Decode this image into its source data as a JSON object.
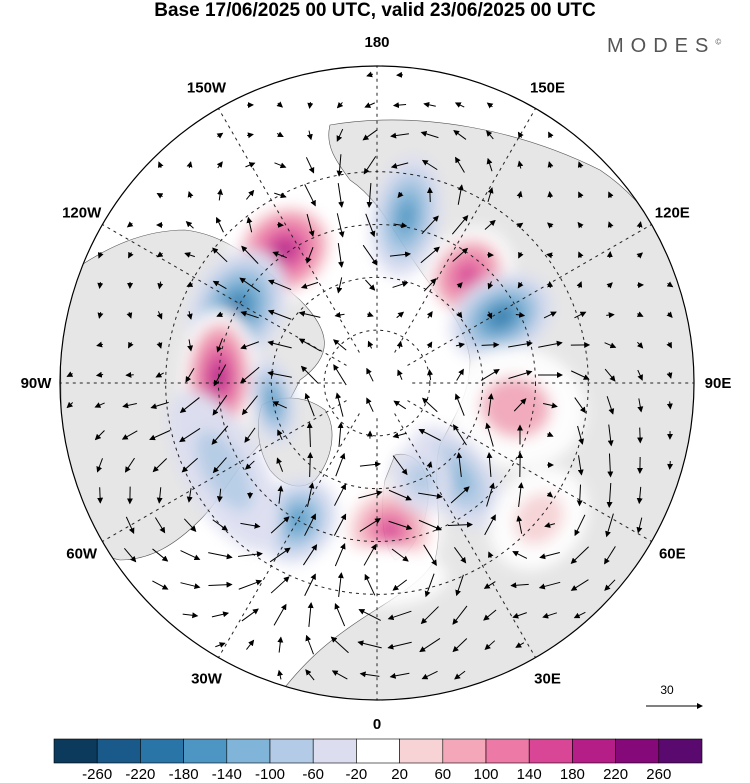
{
  "title": "Base 17/06/2025 00 UTC, valid 23/06/2025 00 UTC",
  "brand": "MODES",
  "brand_mark": "©",
  "longitude_labels": [
    {
      "lon": 180,
      "text": "180"
    },
    {
      "lon": 150,
      "text": "150E"
    },
    {
      "lon": 120,
      "text": "120E"
    },
    {
      "lon": 90,
      "text": "90E"
    },
    {
      "lon": 60,
      "text": "60E"
    },
    {
      "lon": 30,
      "text": "30E"
    },
    {
      "lon": 0,
      "text": "0"
    },
    {
      "lon": -30,
      "text": "30W"
    },
    {
      "lon": -60,
      "text": "60W"
    },
    {
      "lon": -90,
      "text": "90W"
    },
    {
      "lon": -120,
      "text": "120W"
    },
    {
      "lon": -150,
      "text": "150W"
    }
  ],
  "reference_vector": {
    "value": "30"
  },
  "colorbar": {
    "labels": [
      "-260",
      "-220",
      "-180",
      "-140",
      "-100",
      "-60",
      "-20",
      "20",
      "60",
      "100",
      "140",
      "180",
      "220",
      "260"
    ],
    "colors": [
      "#0c3a5c",
      "#1a5a8a",
      "#2a75a8",
      "#4d96c4",
      "#80b4d8",
      "#b3cbe6",
      "#dcdef0",
      "#ffffff",
      "#f8d3d6",
      "#f3a7b9",
      "#ec79a6",
      "#d94696",
      "#b41e86",
      "#86097a",
      "#5a0a6e"
    ]
  },
  "anomalies": [
    {
      "lon": -145,
      "lat": 44,
      "value": 200,
      "rx": 58,
      "ry": 50
    },
    {
      "lon": 170,
      "lat": 42,
      "value": -160,
      "rx": 35,
      "ry": 62
    },
    {
      "lon": 140,
      "lat": 50,
      "value": 160,
      "rx": 42,
      "ry": 50
    },
    {
      "lon": 118,
      "lat": 50,
      "value": -200,
      "rx": 40,
      "ry": 55
    },
    {
      "lon": -118,
      "lat": 45,
      "value": -200,
      "rx": 62,
      "ry": 46
    },
    {
      "lon": -92,
      "lat": 45,
      "value": 200,
      "rx": 68,
      "ry": 38
    },
    {
      "lon": -80,
      "lat": 60,
      "value": -140,
      "rx": 45,
      "ry": 22
    },
    {
      "lon": 80,
      "lat": 50,
      "value": 80,
      "rx": 60,
      "ry": 70
    },
    {
      "lon": 40,
      "lat": 55,
      "value": -100,
      "rx": 35,
      "ry": 60
    },
    {
      "lon": -30,
      "lat": 45,
      "value": -140,
      "rx": 38,
      "ry": 45
    },
    {
      "lon": 5,
      "lat": 48,
      "value": 180,
      "rx": 52,
      "ry": 50
    },
    {
      "lon": -60,
      "lat": 40,
      "value": -60,
      "rx": 90,
      "ry": 40
    },
    {
      "lon": 50,
      "lat": 30,
      "value": 60,
      "rx": 55,
      "ry": 45
    },
    {
      "lon": 0,
      "lat": 35,
      "value": 20,
      "rx": 70,
      "ry": 30
    },
    {
      "lon": 25,
      "lat": 60,
      "value": -80,
      "rx": 30,
      "ry": 35
    }
  ]
}
